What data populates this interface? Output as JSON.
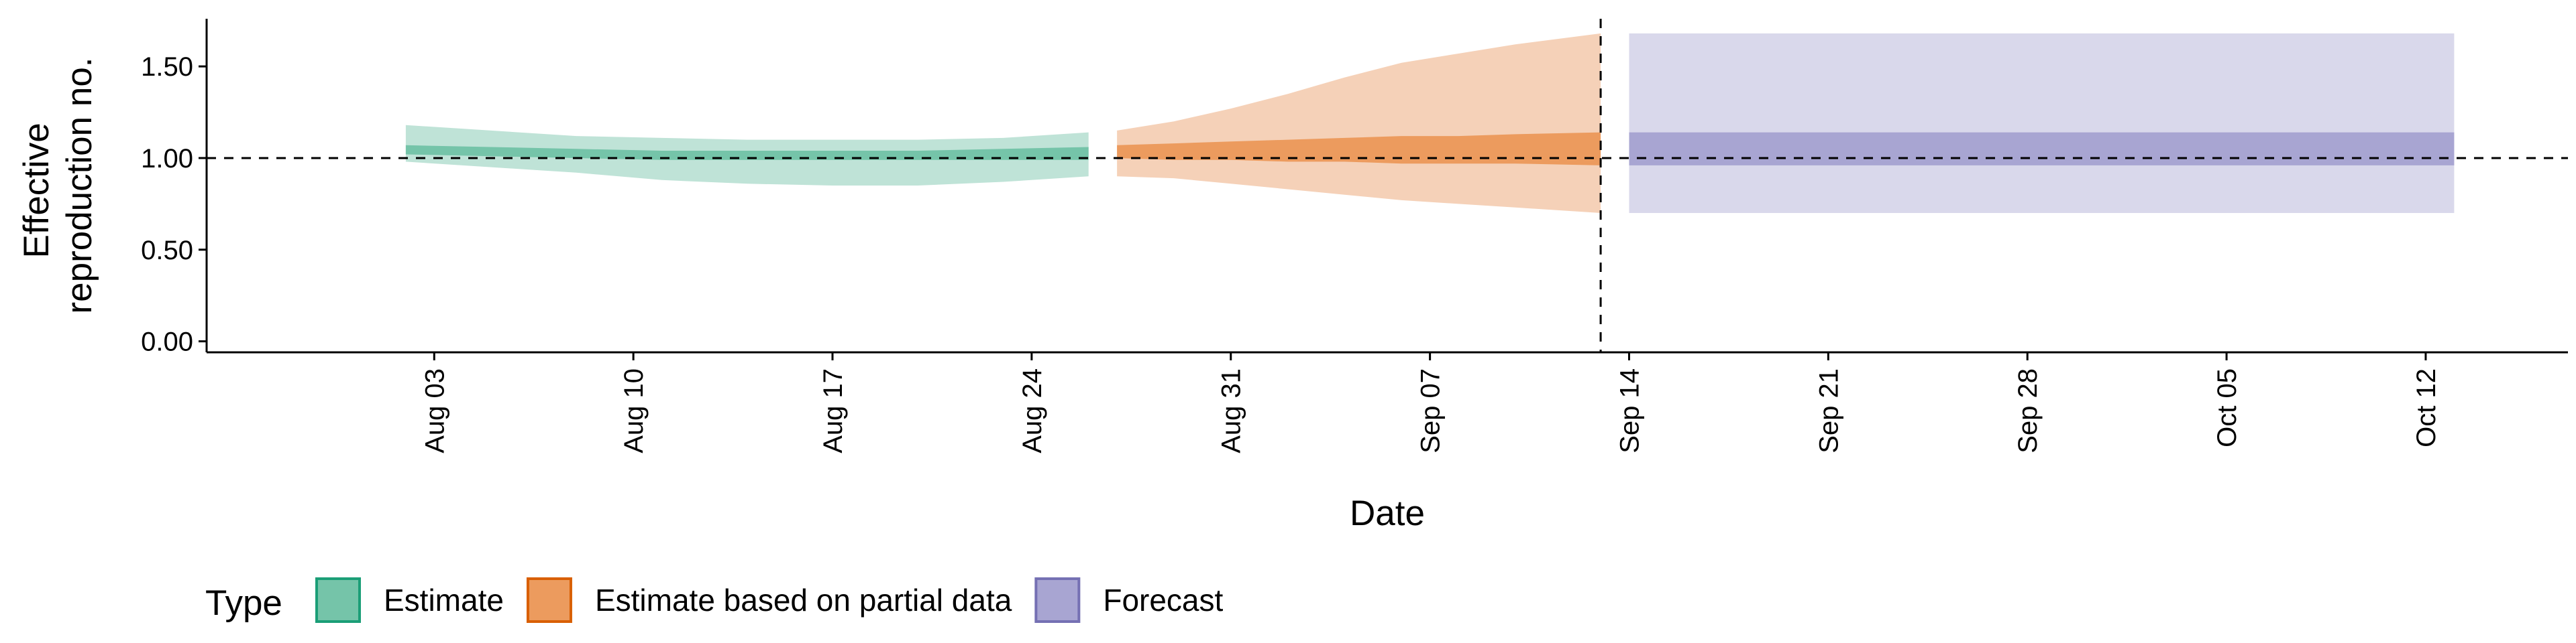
{
  "chart_data": {
    "type": "area",
    "xlabel": "Date",
    "ylabel_lines": [
      "Effective",
      "reproduction no."
    ],
    "y_ticks": [
      "0.00",
      "0.50",
      "1.00",
      "1.50"
    ],
    "y_tick_values": [
      0,
      0.5,
      1.0,
      1.5
    ],
    "ylim": [
      -0.06,
      1.76
    ],
    "xlim": [
      "2020-07-26",
      "2020-10-17"
    ],
    "x_ticks": [
      "Aug 03",
      "Aug 10",
      "Aug 17",
      "Aug 24",
      "Aug 31",
      "Sep 07",
      "Sep 14",
      "Sep 21",
      "Sep 28",
      "Oct 05",
      "Oct 12"
    ],
    "x_tick_dates": [
      "2020-08-03",
      "2020-08-10",
      "2020-08-17",
      "2020-08-24",
      "2020-08-31",
      "2020-09-07",
      "2020-09-14",
      "2020-09-21",
      "2020-09-28",
      "2020-10-05",
      "2020-10-12"
    ],
    "reference_line_y": 1.0,
    "vertical_line_date": "2020-09-13",
    "legend": {
      "title": "Type",
      "position": "bottom-left",
      "entries": [
        "Estimate",
        "Estimate based on partial data",
        "Forecast"
      ]
    },
    "series": [
      {
        "name": "Estimate",
        "color": "#1b9e77",
        "fill_light": "#bfe3d7",
        "fill_dark": "#75c4a9",
        "dates": [
          "2020-08-02",
          "2020-08-05",
          "2020-08-08",
          "2020-08-11",
          "2020-08-14",
          "2020-08-17",
          "2020-08-20",
          "2020-08-23",
          "2020-08-26"
        ],
        "outer_lower": [
          0.98,
          0.95,
          0.92,
          0.88,
          0.86,
          0.85,
          0.85,
          0.87,
          0.9
        ],
        "outer_upper": [
          1.18,
          1.15,
          1.12,
          1.11,
          1.1,
          1.1,
          1.1,
          1.11,
          1.14
        ],
        "inner_lower": [
          1.02,
          1.01,
          1.0,
          0.99,
          0.99,
          0.99,
          0.99,
          0.99,
          0.99
        ],
        "inner_upper": [
          1.07,
          1.06,
          1.05,
          1.04,
          1.04,
          1.04,
          1.04,
          1.05,
          1.06
        ]
      },
      {
        "name": "Estimate based on partial data",
        "color": "#d95f02",
        "fill_light": "#f5d1b8",
        "fill_dark": "#ec9b5e",
        "dates": [
          "2020-08-27",
          "2020-08-29",
          "2020-08-31",
          "2020-09-02",
          "2020-09-04",
          "2020-09-06",
          "2020-09-08",
          "2020-09-10",
          "2020-09-13"
        ],
        "outer_lower": [
          0.9,
          0.89,
          0.86,
          0.83,
          0.8,
          0.77,
          0.75,
          0.73,
          0.7
        ],
        "outer_upper": [
          1.15,
          1.2,
          1.27,
          1.35,
          1.44,
          1.52,
          1.57,
          1.62,
          1.68
        ],
        "inner_lower": [
          1.0,
          0.99,
          0.99,
          0.98,
          0.98,
          0.97,
          0.97,
          0.97,
          0.96
        ],
        "inner_upper": [
          1.07,
          1.08,
          1.09,
          1.1,
          1.11,
          1.12,
          1.12,
          1.13,
          1.14
        ]
      },
      {
        "name": "Forecast",
        "color": "#7570b3",
        "fill_light": "#d9d8eb",
        "fill_dark": "#a8a5d2",
        "dates": [
          "2020-09-14",
          "2020-10-13"
        ],
        "outer_lower": [
          0.7,
          0.7
        ],
        "outer_upper": [
          1.68,
          1.68
        ],
        "inner_lower": [
          0.96,
          0.96
        ],
        "inner_upper": [
          1.14,
          1.14
        ]
      }
    ]
  }
}
